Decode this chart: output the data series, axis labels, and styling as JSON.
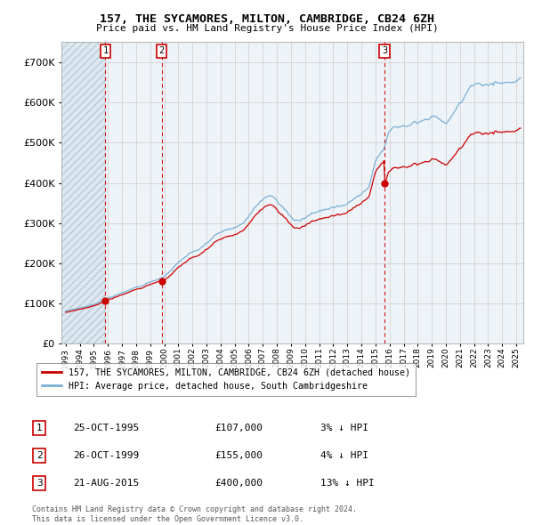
{
  "title": "157, THE SYCAMORES, MILTON, CAMBRIDGE, CB24 6ZH",
  "subtitle": "Price paid vs. HM Land Registry's House Price Index (HPI)",
  "legend_line1": "157, THE SYCAMORES, MILTON, CAMBRIDGE, CB24 6ZH (detached house)",
  "legend_line2": "HPI: Average price, detached house, South Cambridgeshire",
  "sales": [
    {
      "num": 1,
      "date_label": "25-OCT-1995",
      "price": 107000,
      "pct": "3% ↓ HPI",
      "x": 1995.82
    },
    {
      "num": 2,
      "date_label": "26-OCT-1999",
      "price": 155000,
      "pct": "4% ↓ HPI",
      "x": 1999.82
    },
    {
      "num": 3,
      "date_label": "21-AUG-2015",
      "price": 400000,
      "pct": "13% ↓ HPI",
      "x": 2015.64
    }
  ],
  "footer_line1": "Contains HM Land Registry data © Crown copyright and database right 2024.",
  "footer_line2": "This data is licensed under the Open Government Licence v3.0.",
  "price_color": "#cc0000",
  "hpi_color": "#7ab0d4",
  "ylim": [
    0,
    750000
  ],
  "yticks": [
    0,
    100000,
    200000,
    300000,
    400000,
    500000,
    600000,
    700000
  ],
  "xlim_start": 1992.7,
  "xlim_end": 2025.5,
  "background_color": "#ffffff",
  "hatch_bg_color": "#dde8f0",
  "grid_color": "#cccccc"
}
